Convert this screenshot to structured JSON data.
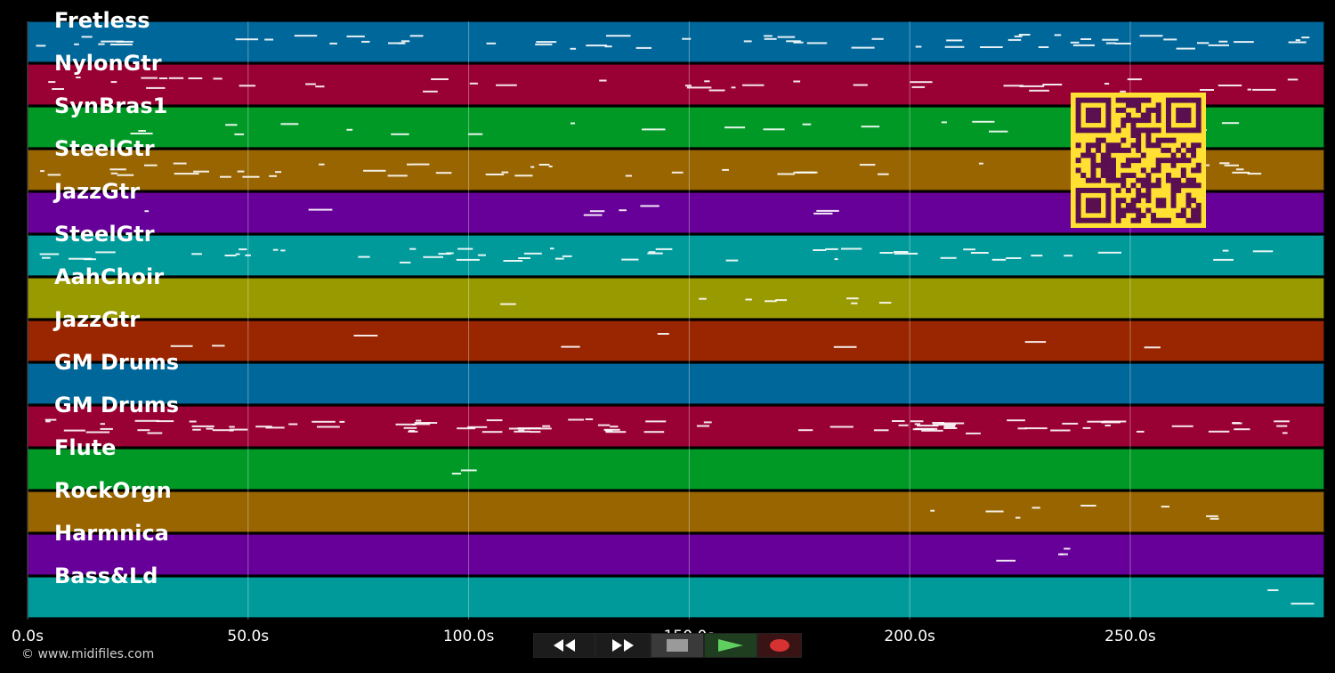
{
  "tracks": [
    {
      "label": "Fretless",
      "color": "#00679a"
    },
    {
      "label": "NylonGtr",
      "color": "#990033"
    },
    {
      "label": "SynBras1",
      "color": "#009926"
    },
    {
      "label": "SteelGtr",
      "color": "#996500"
    },
    {
      "label": "JazzGtr",
      "color": "#660099"
    },
    {
      "label": "SteelGtr",
      "color": "#009a9a"
    },
    {
      "label": "AahChoir",
      "color": "#999900"
    },
    {
      "label": "JazzGtr",
      "color": "#992600"
    },
    {
      "label": "GM Drums",
      "color": "#00679a"
    },
    {
      "label": "GM Drums",
      "color": "#990033"
    },
    {
      "label": "Flute",
      "color": "#009926"
    },
    {
      "label": "RockOrgn",
      "color": "#996500"
    },
    {
      "label": "Harmnica",
      "color": "#660099"
    },
    {
      "label": "Bass&Ld",
      "color": "#009a9a"
    }
  ],
  "timeline": {
    "max_seconds": 294,
    "ticks": [
      {
        "value": 0,
        "label": "0.0s"
      },
      {
        "value": 50,
        "label": "50.0s"
      },
      {
        "value": 100,
        "label": "100.0s"
      },
      {
        "value": 150,
        "label": "150.0s"
      },
      {
        "value": 200,
        "label": "200.0s"
      },
      {
        "value": 250,
        "label": "250.0s"
      }
    ]
  },
  "transport": {
    "rewind": "rewind-icon",
    "fast_forward": "fast-forward-icon",
    "stop": "stop-icon",
    "play": "play-icon",
    "record": "record-icon"
  },
  "copyright": "© www.midifiles.com",
  "qr_colors": {
    "fg": "#5a1050",
    "bg": "#ffe033"
  }
}
